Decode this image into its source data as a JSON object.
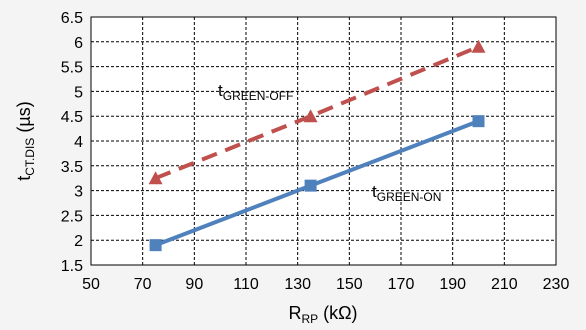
{
  "chart_data": {
    "type": "line",
    "title": "",
    "xlabel": {
      "main": "R",
      "sub": "RP",
      "unit": " (kΩ)"
    },
    "ylabel": {
      "main": "t",
      "sub": "CT.DIS",
      "unit": " (µs)"
    },
    "xlim": [
      50,
      230
    ],
    "ylim": [
      1.5,
      6.5
    ],
    "x_ticks": [
      "50",
      "70",
      "90",
      "110",
      "130",
      "150",
      "170",
      "190",
      "210",
      "230"
    ],
    "y_ticks": [
      "1.5",
      "2",
      "2.5",
      "3",
      "3.5",
      "4",
      "4.5",
      "5",
      "5.5",
      "6",
      "6.5"
    ],
    "grid": true,
    "x": [
      75,
      135,
      200
    ],
    "series": [
      {
        "name": "t_GREEN-OFF",
        "label_main": "t",
        "label_sub": "GREEN-OFF",
        "values": [
          3.25,
          4.5,
          5.9
        ],
        "color": "#c0504d",
        "line_style": "dashed",
        "marker": "triangle"
      },
      {
        "name": "t_GREEN-ON",
        "label_main": "t",
        "label_sub": "GREEN-ON",
        "values": [
          1.9,
          3.1,
          4.4
        ],
        "color": "#4f81bd",
        "line_style": "solid",
        "marker": "square"
      }
    ]
  }
}
